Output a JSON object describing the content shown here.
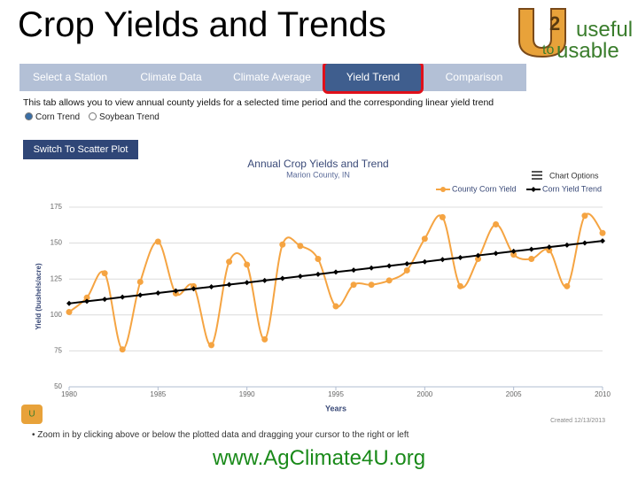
{
  "slide": {
    "title": "Crop Yields and Trends",
    "footer": "www.AgClimate4U.org"
  },
  "logo": {
    "word1": "useful",
    "word2": "to",
    "word3": "usable"
  },
  "tabs": [
    "Select a Station",
    "Climate Data",
    "Climate Average",
    "Yield Trend",
    "Comparison"
  ],
  "description": "This tab allows you to view annual county yields for a selected time period and the corresponding linear yield trend",
  "options": [
    "Corn Trend",
    "Soybean Trend"
  ],
  "button": "Switch To Scatter Plot",
  "chart_options": "Chart Options",
  "hint": "Zoom in by clicking above or below the plotted data and dragging your cursor to the right or left",
  "chart_data": {
    "type": "line",
    "title": "Annual Crop Yields and Trend",
    "subtitle": "Marion County, IN",
    "x_label": "Years",
    "y_label": "Yield (bushels/acre)",
    "credit": "Created 12/13/2013",
    "x": [
      1980,
      1981,
      1982,
      1983,
      1984,
      1985,
      1986,
      1987,
      1988,
      1989,
      1990,
      1991,
      1992,
      1993,
      1994,
      1995,
      1996,
      1997,
      1998,
      1999,
      2000,
      2001,
      2002,
      2003,
      2004,
      2005,
      2006,
      2007,
      2008,
      2009,
      2010
    ],
    "series": [
      {
        "name": "County Corn Yield",
        "color": "#f5a442",
        "values": [
          102,
          112,
          129,
          76,
          123,
          151,
          115,
          120,
          79,
          137,
          135,
          83,
          149,
          148,
          139,
          106,
          121,
          121,
          124,
          131,
          153,
          168,
          120,
          139,
          163,
          142,
          139,
          145,
          120,
          169,
          157
        ]
      },
      {
        "name": "Corn Yield Trend",
        "color": "#000000",
        "values": [
          108.0,
          109.5,
          110.9,
          112.4,
          113.8,
          115.3,
          116.7,
          118.2,
          119.6,
          121.1,
          122.5,
          124.0,
          125.4,
          126.9,
          128.3,
          129.8,
          131.2,
          132.7,
          134.1,
          135.6,
          137.0,
          138.5,
          139.9,
          141.4,
          142.8,
          144.3,
          145.7,
          147.2,
          148.6,
          150.1,
          151.5
        ]
      }
    ],
    "xlim": [
      1980,
      2010
    ],
    "xticks": [
      1980,
      1985,
      1990,
      1995,
      2000,
      2005,
      2010
    ],
    "ylim": [
      50,
      175
    ],
    "yticks": [
      50,
      75,
      100,
      125,
      150,
      175
    ],
    "grid": true,
    "legend": "top-right"
  }
}
